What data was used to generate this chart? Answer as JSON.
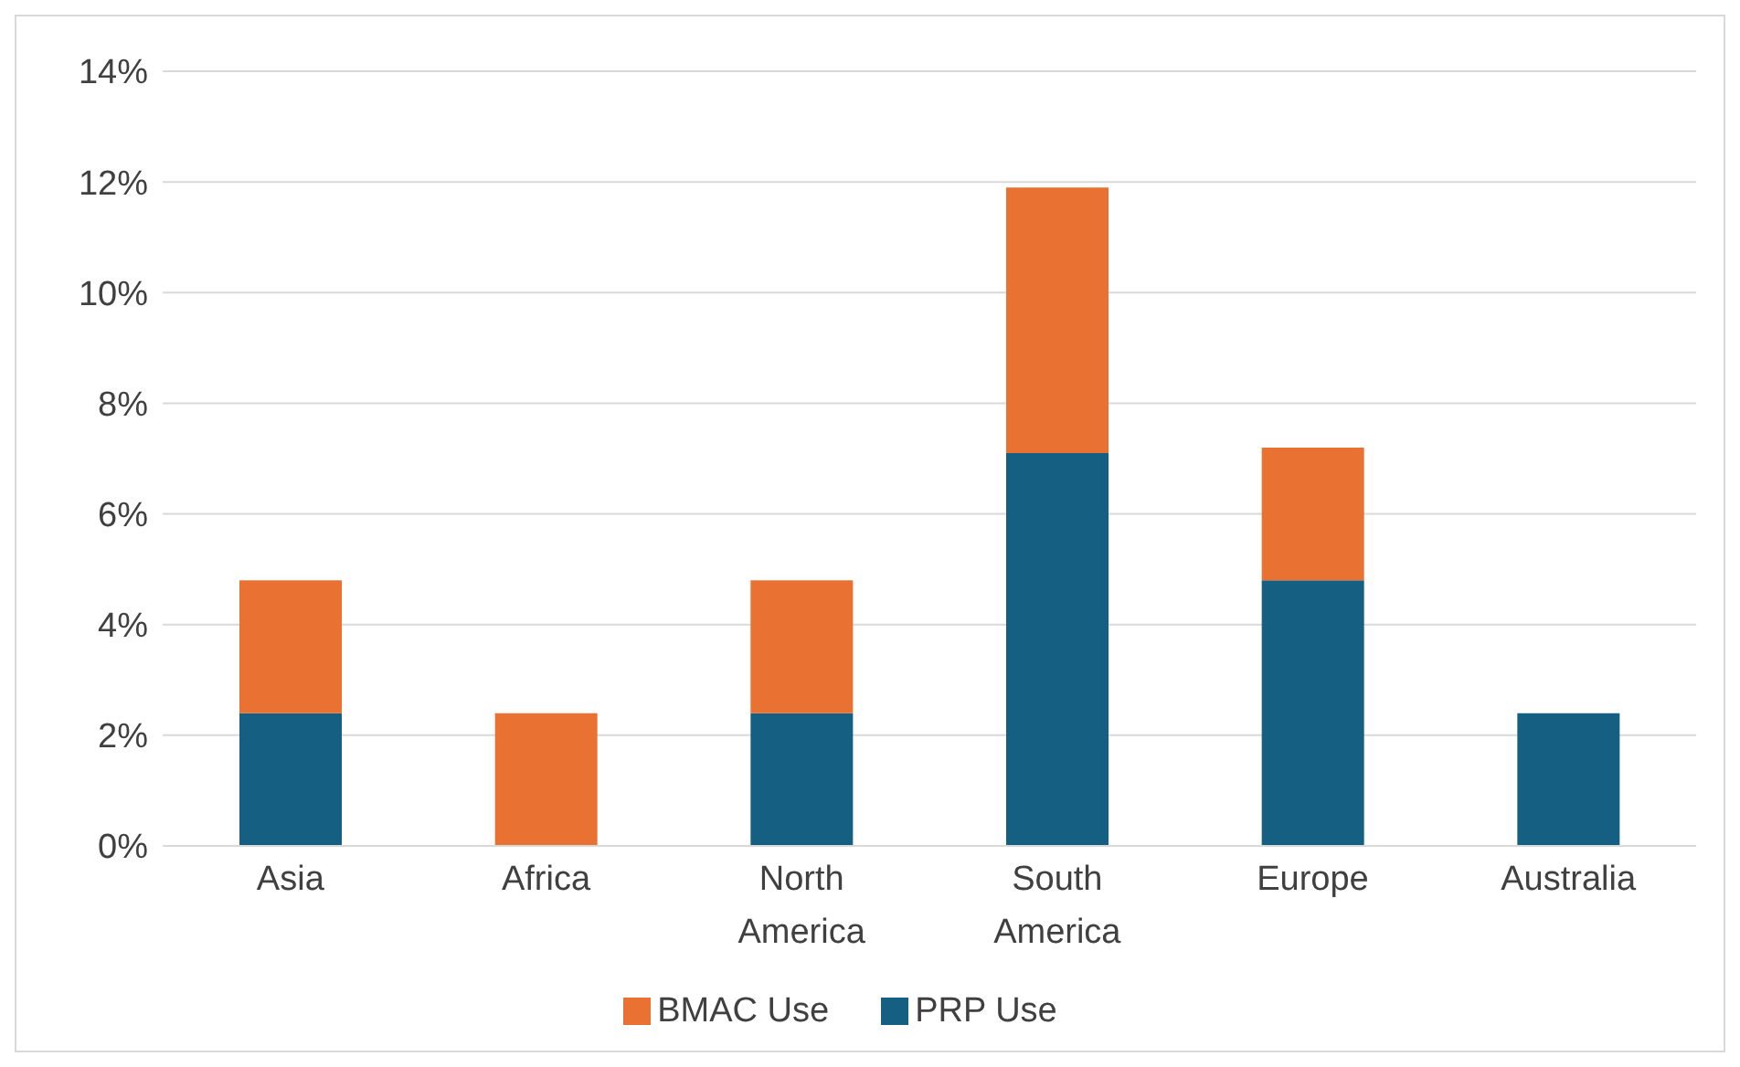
{
  "chart_data": {
    "type": "bar",
    "stacked": true,
    "categories": [
      "Asia",
      "Africa",
      "North America",
      "South America",
      "Europe",
      "Australia"
    ],
    "series": [
      {
        "name": "PRP Use",
        "color": "#156082",
        "values": [
          2.4,
          0,
          2.4,
          7.1,
          4.8,
          2.4
        ]
      },
      {
        "name": "BMAC Use",
        "color": "#e97132",
        "values": [
          2.4,
          2.4,
          2.4,
          4.8,
          2.4,
          0
        ]
      }
    ],
    "ylim": [
      0,
      14
    ],
    "yticks": [
      {
        "value": 0,
        "label": "0%"
      },
      {
        "value": 2,
        "label": "2%"
      },
      {
        "value": 4,
        "label": "4%"
      },
      {
        "value": 6,
        "label": "6%"
      },
      {
        "value": 8,
        "label": "8%"
      },
      {
        "value": 10,
        "label": "10%"
      },
      {
        "value": 12,
        "label": "12%"
      },
      {
        "value": 14,
        "label": "14%"
      }
    ],
    "grid": "y",
    "legend": "bottom"
  }
}
